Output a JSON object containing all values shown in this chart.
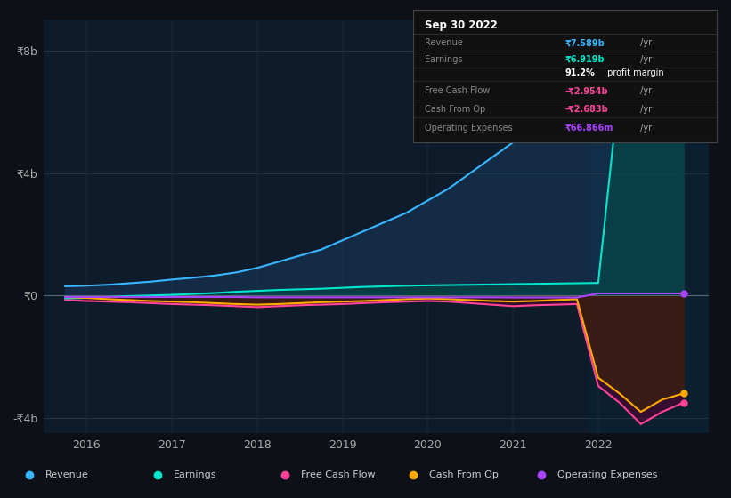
{
  "bg_color": "#0d1117",
  "chart_bg": "#0d1b2a",
  "xlim": [
    2015.5,
    2023.3
  ],
  "ylim": [
    -4500000000.0,
    9000000000.0
  ],
  "yticks": [
    -4000000000.0,
    0,
    4000000000.0,
    8000000000.0
  ],
  "ytick_labels": [
    "-₹4b",
    "₹0",
    "₹4b",
    "₹8b"
  ],
  "xticks": [
    2016,
    2017,
    2018,
    2019,
    2020,
    2021,
    2022
  ],
  "highlight_x_start": 2021.9,
  "series": {
    "Revenue": {
      "color": "#38b6ff",
      "fill": true,
      "fill_color": "#1a3a5c",
      "x": [
        2015.75,
        2016,
        2016.25,
        2016.5,
        2016.75,
        2017,
        2017.25,
        2017.5,
        2017.75,
        2018,
        2018.25,
        2018.5,
        2018.75,
        2019,
        2019.25,
        2019.5,
        2019.75,
        2020,
        2020.25,
        2020.5,
        2020.75,
        2021,
        2021.25,
        2021.5,
        2021.75,
        2022,
        2022.25,
        2022.5,
        2022.75,
        2023.0
      ],
      "y": [
        300000000.0,
        320000000.0,
        350000000.0,
        400000000.0,
        450000000.0,
        520000000.0,
        580000000.0,
        650000000.0,
        750000000.0,
        900000000.0,
        1100000000.0,
        1300000000.0,
        1500000000.0,
        1800000000.0,
        2100000000.0,
        2400000000.0,
        2700000000.0,
        3100000000.0,
        3500000000.0,
        4000000000.0,
        4500000000.0,
        5000000000.0,
        5500000000.0,
        6000000000.0,
        6500000000.0,
        7000000000.0,
        7400000000.0,
        7589000000.0,
        7800000000.0,
        8000000000.0
      ]
    },
    "Earnings": {
      "color": "#00e5cc",
      "fill": true,
      "fill_color": "#004d44",
      "x": [
        2015.75,
        2016,
        2016.25,
        2016.5,
        2016.75,
        2017,
        2017.25,
        2017.5,
        2017.75,
        2018,
        2018.25,
        2018.5,
        2018.75,
        2019,
        2019.25,
        2019.5,
        2019.75,
        2020,
        2020.25,
        2020.5,
        2020.75,
        2021,
        2021.25,
        2021.5,
        2021.75,
        2022,
        2022.25,
        2022.5,
        2022.75,
        2023.0
      ],
      "y": [
        -100000000.0,
        -80000000.0,
        -50000000.0,
        -20000000.0,
        0,
        20000000.0,
        50000000.0,
        80000000.0,
        120000000.0,
        150000000.0,
        180000000.0,
        200000000.0,
        220000000.0,
        250000000.0,
        280000000.0,
        300000000.0,
        320000000.0,
        330000000.0,
        340000000.0,
        350000000.0,
        360000000.0,
        370000000.0,
        380000000.0,
        390000000.0,
        400000000.0,
        410000000.0,
        6919000000.0,
        6500000000.0,
        7000000000.0,
        7500000000.0
      ]
    },
    "Free Cash Flow": {
      "color": "#ff4499",
      "fill": true,
      "fill_color": "#5c0033",
      "x": [
        2015.75,
        2016,
        2016.25,
        2016.5,
        2016.75,
        2017,
        2017.25,
        2017.5,
        2017.75,
        2018,
        2018.25,
        2018.5,
        2018.75,
        2019,
        2019.25,
        2019.5,
        2019.75,
        2020,
        2020.25,
        2020.5,
        2020.75,
        2021,
        2021.25,
        2021.5,
        2021.75,
        2022,
        2022.25,
        2022.5,
        2022.75,
        2023.0
      ],
      "y": [
        -150000000.0,
        -180000000.0,
        -200000000.0,
        -220000000.0,
        -250000000.0,
        -280000000.0,
        -300000000.0,
        -320000000.0,
        -350000000.0,
        -380000000.0,
        -350000000.0,
        -320000000.0,
        -300000000.0,
        -280000000.0,
        -250000000.0,
        -220000000.0,
        -200000000.0,
        -180000000.0,
        -200000000.0,
        -250000000.0,
        -300000000.0,
        -350000000.0,
        -320000000.0,
        -300000000.0,
        -280000000.0,
        -2954000000.0,
        -3500000000.0,
        -4200000000.0,
        -3800000000.0,
        -3500000000.0
      ]
    },
    "Cash From Op": {
      "color": "#ffaa00",
      "fill": true,
      "fill_color": "#3d2900",
      "x": [
        2015.75,
        2016,
        2016.25,
        2016.5,
        2016.75,
        2017,
        2017.25,
        2017.5,
        2017.75,
        2018,
        2018.25,
        2018.5,
        2018.75,
        2019,
        2019.25,
        2019.5,
        2019.75,
        2020,
        2020.25,
        2020.5,
        2020.75,
        2021,
        2021.25,
        2021.5,
        2021.75,
        2022,
        2022.25,
        2022.5,
        2022.75,
        2023.0
      ],
      "y": [
        -50000000.0,
        -80000000.0,
        -120000000.0,
        -150000000.0,
        -180000000.0,
        -200000000.0,
        -220000000.0,
        -250000000.0,
        -280000000.0,
        -300000000.0,
        -280000000.0,
        -250000000.0,
        -220000000.0,
        -200000000.0,
        -180000000.0,
        -150000000.0,
        -120000000.0,
        -100000000.0,
        -120000000.0,
        -150000000.0,
        -180000000.0,
        -200000000.0,
        -180000000.0,
        -150000000.0,
        -120000000.0,
        -2683000000.0,
        -3200000000.0,
        -3800000000.0,
        -3400000000.0,
        -3200000000.0
      ]
    },
    "Operating Expenses": {
      "color": "#aa44ff",
      "fill": false,
      "x": [
        2015.75,
        2016,
        2016.25,
        2016.5,
        2016.75,
        2017,
        2017.25,
        2017.5,
        2017.75,
        2018,
        2018.25,
        2018.5,
        2018.75,
        2019,
        2019.25,
        2019.5,
        2019.75,
        2020,
        2020.25,
        2020.5,
        2020.75,
        2021,
        2021.25,
        2021.5,
        2021.75,
        2022,
        2022.25,
        2022.5,
        2022.75,
        2023.0
      ],
      "y": [
        -50000000.0,
        -50000000.0,
        -50000000.0,
        -50000000.0,
        -50000000.0,
        -50000000.0,
        -50000000.0,
        -50000000.0,
        -50000000.0,
        -60000000.0,
        -60000000.0,
        -60000000.0,
        -60000000.0,
        -60000000.0,
        -60000000.0,
        -60000000.0,
        -60000000.0,
        -60000000.0,
        -60000000.0,
        -60000000.0,
        -60000000.0,
        -65000000.0,
        -65000000.0,
        -65000000.0,
        -65000000.0,
        66866000.0,
        66866000.0,
        66866000.0,
        66866000.0,
        66866000.0
      ]
    }
  },
  "tooltip": {
    "title": "Sep 30 2022",
    "rows": [
      {
        "label": "Revenue",
        "value": "₹7.589b",
        "suffix": " /yr",
        "value_color": "#38b6ff",
        "label_color": "#888888",
        "extra": null
      },
      {
        "label": "Earnings",
        "value": "₹6.919b",
        "suffix": " /yr",
        "value_color": "#00e5cc",
        "label_color": "#888888",
        "extra": null
      },
      {
        "label": "",
        "value": "91.2%",
        "suffix": " profit margin",
        "value_color": "#ffffff",
        "label_color": "#888888",
        "extra": "bold_prefix"
      },
      {
        "label": "Free Cash Flow",
        "value": "-₹2.954b",
        "suffix": " /yr",
        "value_color": "#ff4499",
        "label_color": "#888888",
        "extra": null
      },
      {
        "label": "Cash From Op",
        "value": "-₹2.683b",
        "suffix": " /yr",
        "value_color": "#ff4499",
        "label_color": "#888888",
        "extra": null
      },
      {
        "label": "Operating Expenses",
        "value": "₹66.866m",
        "suffix": " /yr",
        "value_color": "#aa44ff",
        "label_color": "#888888",
        "extra": null
      }
    ]
  },
  "legend": [
    {
      "label": "Revenue",
      "color": "#38b6ff"
    },
    {
      "label": "Earnings",
      "color": "#00e5cc"
    },
    {
      "label": "Free Cash Flow",
      "color": "#ff4499"
    },
    {
      "label": "Cash From Op",
      "color": "#ffaa00"
    },
    {
      "label": "Operating Expenses",
      "color": "#aa44ff"
    }
  ]
}
